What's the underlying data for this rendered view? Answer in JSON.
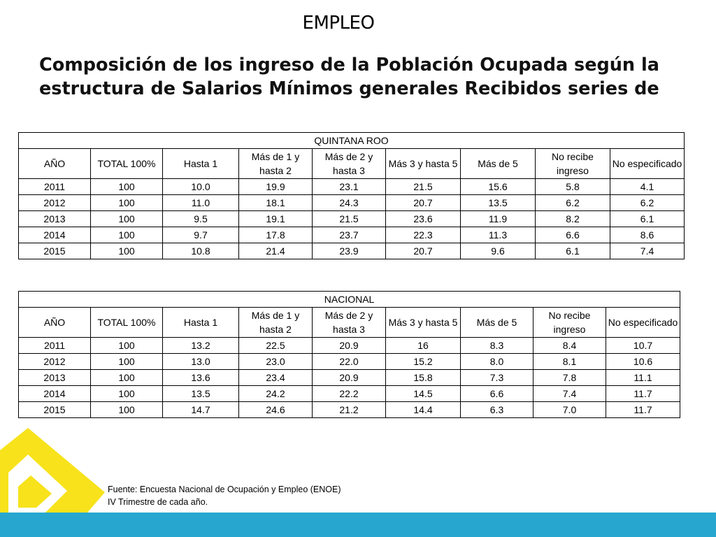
{
  "header": {
    "section": "EMPLEO"
  },
  "title": {
    "line1": "Composición de los ingreso de la Población Ocupada según la",
    "line2": "estructura de Salarios Mínimos generales Recibidos  series de"
  },
  "columns": {
    "c1": "AÑO",
    "c2": "TOTAL  100%",
    "c3": "Hasta 1",
    "c4": "Más de 1 y hasta 2",
    "c5": "Más de 2 y hasta 3",
    "c6": "Más 3 y hasta 5",
    "c7": "Más de 5",
    "c8": "No recibe ingreso",
    "c9": "No especificado"
  },
  "quintana_roo": {
    "title": "QUINTANA ROO",
    "rows": [
      [
        "2011",
        "100",
        "10.0",
        "19.9",
        "23.1",
        "21.5",
        "15.6",
        "5.8",
        "4.1"
      ],
      [
        "2012",
        "100",
        "11.0",
        "18.1",
        "24.3",
        "20.7",
        "13.5",
        "6.2",
        "6.2"
      ],
      [
        "2013",
        "100",
        "9.5",
        "19.1",
        "21.5",
        "23.6",
        "11.9",
        "8.2",
        "6.1"
      ],
      [
        "2014",
        "100",
        "9.7",
        "17.8",
        "23.7",
        "22.3",
        "11.3",
        "6.6",
        "8.6"
      ],
      [
        "2015",
        "100",
        "10.8",
        "21.4",
        "23.9",
        "20.7",
        "9.6",
        "6.1",
        "7.4"
      ]
    ]
  },
  "nacional": {
    "title": "NACIONAL",
    "rows": [
      [
        "2011",
        "100",
        "13.2",
        "22.5",
        "20.9",
        "16",
        "8.3",
        "8.4",
        "10.7"
      ],
      [
        "2012",
        "100",
        "13.0",
        "23.0",
        "22.0",
        "15.2",
        "8.0",
        "8.1",
        "10.6"
      ],
      [
        "2013",
        "100",
        "13.6",
        "23.4",
        "20.9",
        "15.8",
        "7.3",
        "7.8",
        "11.1"
      ],
      [
        "2014",
        "100",
        "13.5",
        "24.2",
        "22.2",
        "14.5",
        "6.6",
        "7.4",
        "11.7"
      ],
      [
        "2015",
        "100",
        "14.7",
        "24.6",
        "21.2",
        "14.4",
        "6.3",
        "7.0",
        "11.7"
      ]
    ]
  },
  "footer": {
    "source": "Fuente: Encuesta Nacional de Ocupación y Empleo (ENOE)",
    "note": "IV Trimestre de cada año."
  },
  "colors": {
    "accent_yellow": "#f7e21b",
    "band_blue": "#27a7cf"
  }
}
